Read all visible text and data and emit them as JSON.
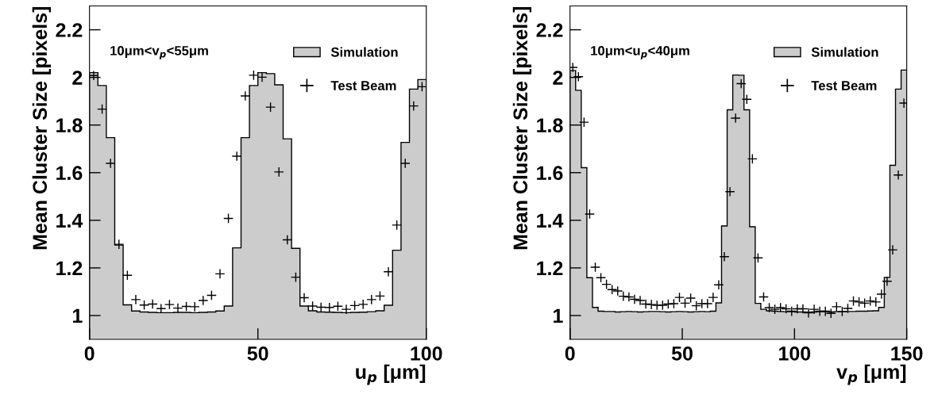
{
  "chart_data": [
    {
      "type": "histogram",
      "xlabel": "u$_{p}$ [μm]",
      "ylabel": "Mean Cluster Size [pixels]",
      "annotations": [
        "10μm<v$_{p}$<55μm"
      ],
      "xlim": [
        0,
        100
      ],
      "ylim": [
        0.9,
        2.3
      ],
      "xticks": [
        0,
        50,
        100
      ],
      "yticks": [
        1,
        1.2,
        1.4,
        1.6,
        1.8,
        2,
        2.2
      ],
      "legend": "top right",
      "grid": false,
      "series": [
        {
          "name": "Simulation",
          "color": "#cccccc",
          "bins": [
            0,
            2.5,
            5,
            7.5,
            10,
            12.5,
            15,
            17.5,
            20,
            22.5,
            25,
            27.5,
            30,
            32.5,
            35,
            37.5,
            40,
            42.5,
            45,
            47.5,
            50,
            52.5,
            55,
            57.5,
            60,
            62.5,
            65,
            67.5,
            70,
            72.5,
            75,
            77.5,
            80,
            82.5,
            85,
            87.5,
            90,
            92.5,
            95,
            97.5,
            100
          ],
          "values": [
            2.02,
            1.966,
            1.747,
            1.296,
            1.045,
            1.019,
            1.015,
            1.013,
            1.012,
            1.012,
            1.013,
            1.013,
            1.012,
            1.013,
            1.015,
            1.019,
            1.04,
            1.284,
            1.747,
            1.966,
            2.02,
            2.016,
            1.969,
            1.742,
            1.282,
            1.04,
            1.02,
            1.015,
            1.014,
            1.013,
            1.012,
            1.013,
            1.014,
            1.016,
            1.02,
            1.043,
            1.274,
            1.727,
            1.951,
            1.991
          ]
        },
        {
          "name": "Test Beam",
          "type": "scatter",
          "color": "#000000",
          "marker": "cross",
          "x": [
            1.25,
            3.75,
            6.25,
            8.75,
            11.25,
            13.75,
            16.25,
            18.75,
            21.25,
            23.75,
            26.25,
            28.75,
            31.25,
            33.75,
            36.25,
            38.75,
            41.25,
            43.75,
            46.25,
            48.75,
            51.25,
            53.75,
            56.25,
            58.75,
            61.25,
            63.75,
            66.25,
            68.75,
            71.25,
            73.75,
            76.25,
            78.75,
            81.25,
            83.75,
            86.25,
            88.75,
            91.25,
            93.75,
            96.25,
            98.75
          ],
          "values": [
            2.008,
            1.867,
            1.639,
            1.299,
            1.169,
            1.067,
            1.044,
            1.048,
            1.029,
            1.046,
            1.031,
            1.038,
            1.037,
            1.063,
            1.085,
            1.175,
            1.408,
            1.669,
            1.922,
            2.009,
            2.001,
            1.875,
            1.603,
            1.318,
            1.161,
            1.075,
            1.04,
            1.035,
            1.034,
            1.039,
            1.026,
            1.042,
            1.047,
            1.067,
            1.082,
            1.184,
            1.38,
            1.639,
            1.88,
            1.961
          ]
        }
      ]
    },
    {
      "type": "histogram",
      "xlabel": "v$_{p}$ [μm]",
      "ylabel": "Mean Cluster Size [pixels]",
      "annotations": [
        "10μm<u$_{p}$<40μm"
      ],
      "xlim": [
        0,
        150
      ],
      "ylim": [
        0.9,
        2.3
      ],
      "xticks": [
        0,
        50,
        100,
        150
      ],
      "yticks": [
        1,
        1.2,
        1.4,
        1.6,
        1.8,
        2,
        2.2
      ],
      "legend": "top right",
      "grid": false,
      "series": [
        {
          "name": "Simulation",
          "color": "#cccccc",
          "bins": [
            0,
            2.5,
            5,
            7.5,
            10,
            12.5,
            15,
            17.5,
            20,
            22.5,
            25,
            27.5,
            30,
            32.5,
            35,
            37.5,
            40,
            42.5,
            45,
            47.5,
            50,
            52.5,
            55,
            57.5,
            60,
            62.5,
            65,
            67.5,
            70,
            72.5,
            75,
            77.5,
            80,
            82.5,
            85,
            87.5,
            90,
            92.5,
            95,
            97.5,
            100,
            102.5,
            105,
            107.5,
            110,
            112.5,
            115,
            117.5,
            120,
            122.5,
            125,
            127.5,
            130,
            132.5,
            135,
            137.5,
            140,
            142.5,
            145,
            147.5,
            150
          ],
          "values": [
            2.029,
            1.946,
            1.621,
            1.159,
            1.034,
            1.018,
            1.017,
            1.017,
            1.015,
            1.016,
            1.017,
            1.016,
            1.015,
            1.016,
            1.017,
            1.017,
            1.016,
            1.015,
            1.016,
            1.017,
            1.016,
            1.015,
            1.016,
            1.017,
            1.016,
            1.018,
            1.053,
            1.376,
            1.864,
            2.01,
            2.009,
            1.864,
            1.373,
            1.051,
            1.026,
            1.02,
            1.018,
            1.017,
            1.016,
            1.016,
            1.015,
            1.015,
            1.014,
            1.015,
            1.016,
            1.016,
            1.015,
            1.016,
            1.016,
            1.017,
            1.017,
            1.018,
            1.018,
            1.019,
            1.02,
            1.034,
            1.16,
            1.631,
            1.951,
            2.031
          ]
        },
        {
          "name": "Test Beam",
          "type": "scatter",
          "color": "#000000",
          "marker": "cross",
          "x": [
            1.25,
            3.75,
            6.25,
            8.75,
            11.25,
            13.75,
            16.25,
            18.75,
            21.25,
            23.75,
            26.25,
            28.75,
            31.25,
            33.75,
            36.25,
            38.75,
            41.25,
            43.75,
            46.25,
            48.75,
            51.25,
            53.75,
            56.25,
            58.75,
            61.25,
            63.75,
            66.25,
            68.75,
            71.25,
            73.75,
            76.25,
            78.75,
            81.25,
            83.75,
            86.25,
            88.75,
            91.25,
            93.75,
            96.25,
            98.75,
            101.25,
            103.75,
            106.25,
            108.75,
            111.25,
            113.75,
            116.25,
            118.75,
            121.25,
            123.75,
            126.25,
            128.75,
            131.25,
            133.75,
            136.25,
            138.75,
            141.25,
            143.75,
            146.25,
            148.75
          ],
          "values": [
            2.042,
            2.003,
            1.812,
            1.426,
            1.203,
            1.159,
            1.131,
            1.109,
            1.103,
            1.081,
            1.078,
            1.068,
            1.063,
            1.048,
            1.046,
            1.043,
            1.043,
            1.048,
            1.05,
            1.076,
            1.052,
            1.073,
            1.041,
            1.05,
            1.05,
            1.076,
            1.129,
            1.247,
            1.52,
            1.829,
            1.974,
            1.908,
            1.658,
            1.242,
            1.078,
            1.033,
            1.026,
            1.033,
            1.028,
            1.018,
            1.028,
            1.028,
            1.011,
            1.026,
            1.018,
            1.018,
            1.009,
            1.037,
            1.017,
            1.03,
            1.061,
            1.057,
            1.052,
            1.061,
            1.057,
            1.09,
            1.144,
            1.276,
            1.59,
            1.892
          ]
        }
      ]
    }
  ]
}
